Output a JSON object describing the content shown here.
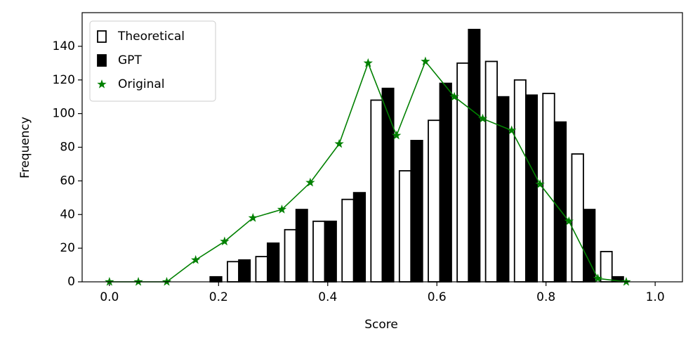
{
  "chart_data": {
    "type": "histogram",
    "xlabel": "Score",
    "ylabel": "Frequency",
    "bins": [
      0,
      0.053,
      0.105,
      0.158,
      0.211,
      0.263,
      0.316,
      0.368,
      0.421,
      0.474,
      0.526,
      0.579,
      0.632,
      0.684,
      0.737,
      0.789,
      0.842,
      0.895,
      0.947,
      1
    ],
    "series": [
      {
        "name": "Theoretical",
        "color": "#ffffff",
        "edgecolor": "#000000",
        "values": [
          0,
          0,
          0,
          0,
          12,
          15,
          31,
          36,
          49,
          108,
          66,
          96,
          130,
          131,
          120,
          112,
          76,
          18,
          0
        ]
      },
      {
        "name": "GPT",
        "color": "#000000",
        "edgecolor": "#000000",
        "values": [
          0,
          0,
          0,
          3,
          13,
          23,
          43,
          36,
          53,
          115,
          84,
          118,
          150,
          110,
          111,
          95,
          43,
          3,
          0
        ]
      },
      {
        "name": "Original",
        "type": "line",
        "marker": "star",
        "color": "#008000",
        "x": [
          0,
          0.053,
          0.105,
          0.158,
          0.211,
          0.263,
          0.316,
          0.368,
          0.421,
          0.474,
          0.526,
          0.579,
          0.632,
          0.684,
          0.737,
          0.789,
          0.842,
          0.895,
          0.947
        ],
        "values": [
          0,
          0,
          0,
          13,
          24,
          38,
          43,
          59,
          82,
          130,
          87,
          131,
          110,
          97,
          90,
          58,
          36,
          2,
          0
        ]
      }
    ],
    "xlim": [
      -0.05,
      1.05
    ],
    "ylim": [
      0,
      160
    ],
    "xticks": [
      {
        "value": 0,
        "label": "0.0"
      },
      0.2,
      0.4,
      0.6,
      0.8,
      {
        "value": 1,
        "label": "1.0"
      }
    ],
    "yticks": [
      0,
      20,
      40,
      60,
      80,
      100,
      120,
      140
    ],
    "legend": "upper left",
    "grid": false
  }
}
